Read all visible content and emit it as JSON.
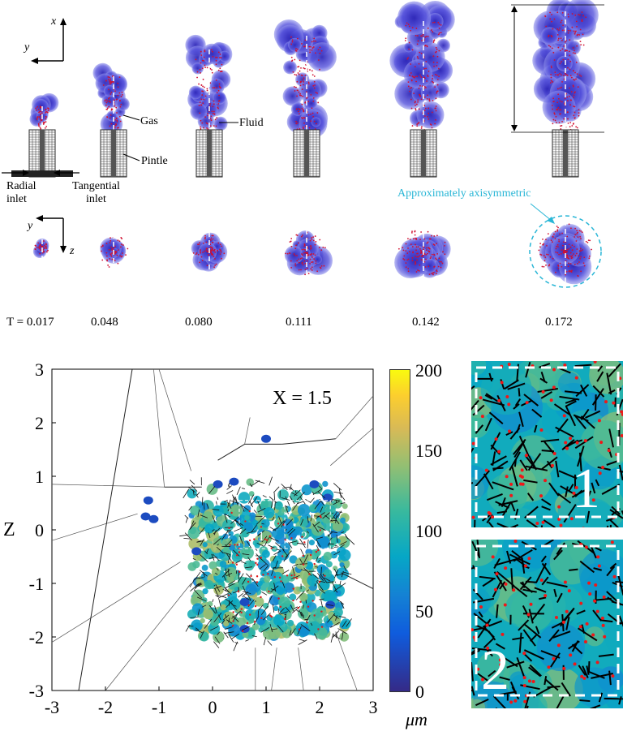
{
  "top_figure": {
    "axes_side": {
      "x": "x",
      "y": "y"
    },
    "axes_bottom": {
      "y": "y",
      "z": "z"
    },
    "labels": {
      "gas": "Gas",
      "fluid": "Fluid",
      "pintle": "Pintle",
      "radial_inlet": "Radial\ninlet",
      "tangential_inlet": "Tangential\ninlet",
      "axisymmetric": "Approximately axisymmetric"
    },
    "times": [
      "T = 0.017",
      "0.048",
      "0.080",
      "0.111",
      "0.142",
      "0.172"
    ]
  },
  "chart_data": {
    "type": "scatter",
    "annotation": "X = 1.5",
    "ylabel": "Z",
    "xlim": [
      -3,
      3
    ],
    "ylim": [
      -3,
      3
    ],
    "x_ticks": [
      "-3",
      "-2",
      "-1",
      "0",
      "1",
      "2",
      "3"
    ],
    "y_ticks": [
      "3",
      "2",
      "1",
      "0",
      "-1",
      "-2",
      "-3"
    ],
    "colorbar": {
      "ticks": [
        "200",
        "150",
        "100",
        "50",
        "0"
      ],
      "range": [
        0,
        200
      ],
      "unit": "μm"
    },
    "inset_labels": [
      "1",
      "2"
    ],
    "colors": {
      "low": "#352a87",
      "mid": "#1fb3a5",
      "high": "#f9fb0e"
    }
  },
  "insets": {
    "inset1_label": "1",
    "inset2_label": "2"
  }
}
